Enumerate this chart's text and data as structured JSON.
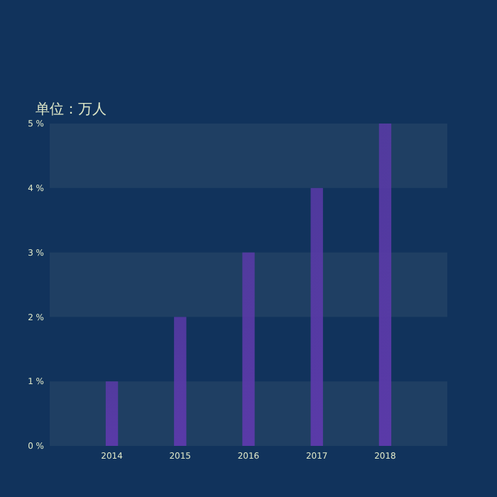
{
  "chart_data": {
    "type": "bar",
    "ylabel": "单位：万人",
    "categories": [
      "2014",
      "2015",
      "2016",
      "2017",
      "2018"
    ],
    "values": [
      1,
      2,
      3,
      4,
      5
    ],
    "color": "#5a3aa8",
    "ylim": [
      0,
      5
    ],
    "yticks": [
      {
        "value": 0,
        "label": "0 %"
      },
      {
        "value": 1,
        "label": "1 %"
      },
      {
        "value": 2,
        "label": "2 %"
      },
      {
        "value": 3,
        "label": "3 %"
      },
      {
        "value": 4,
        "label": "4 %"
      },
      {
        "value": 5,
        "label": "5 %"
      }
    ],
    "bands": [
      {
        "axis": "y",
        "from": 0,
        "to": 1,
        "color": "#1f3f63"
      },
      {
        "axis": "y",
        "from": 2,
        "to": 3,
        "color": "#1f3f63"
      },
      {
        "axis": "y",
        "from": 4,
        "to": 5,
        "color": "#1f3f63"
      }
    ]
  }
}
